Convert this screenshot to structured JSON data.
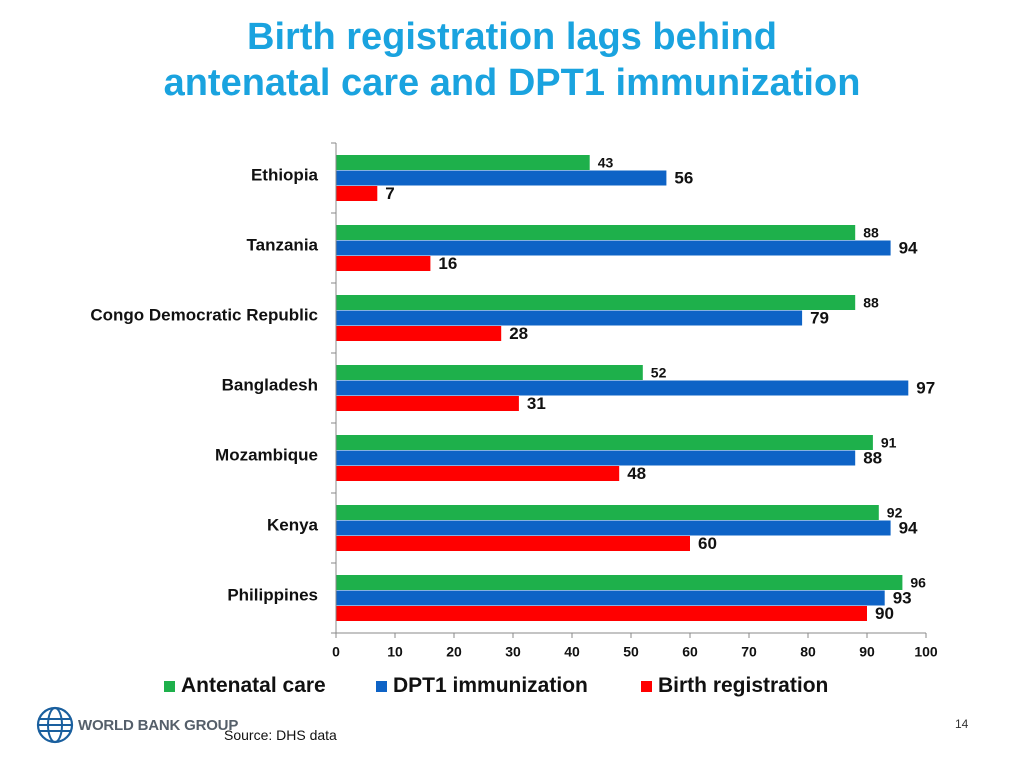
{
  "title_line1": "Birth registration lags behind",
  "title_line2": "antenatal care and DPT1 immunization",
  "chart_data": {
    "type": "bar",
    "orientation": "horizontal",
    "categories": [
      "Ethiopia",
      "Tanzania",
      "Congo Democratic Republic",
      "Bangladesh",
      "Mozambique",
      "Kenya",
      "Philippines"
    ],
    "series": [
      {
        "name": "Antenatal care",
        "color": "#1eb04b",
        "values": [
          43,
          88,
          88,
          52,
          91,
          92,
          96
        ]
      },
      {
        "name": "DPT1 immunization",
        "color": "#0e63c6",
        "values": [
          56,
          94,
          79,
          97,
          88,
          94,
          93
        ]
      },
      {
        "name": "Birth registration",
        "color": "#ff0000",
        "values": [
          7,
          16,
          28,
          31,
          48,
          60,
          90
        ]
      }
    ],
    "xlim": [
      0,
      100
    ],
    "xticks": [
      0,
      10,
      20,
      30,
      40,
      50,
      60,
      70,
      80,
      90,
      100
    ],
    "grid": false,
    "legend_position": "bottom"
  },
  "logo_text": "WORLD BANK GROUP",
  "source": "Source: DHS data",
  "page_number": "14"
}
